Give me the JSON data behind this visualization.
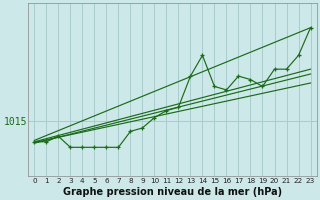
{
  "title": "Graphe pression niveau de la mer (hPa)",
  "bg_color": "#cce8e8",
  "grid_color": "#aacccc",
  "line_color": "#1a6b1a",
  "xlim": [
    -0.5,
    23.5
  ],
  "ylim": [
    1007,
    1032
  ],
  "ytick_val": 1015,
  "xticks": [
    0,
    1,
    2,
    3,
    4,
    5,
    6,
    7,
    8,
    9,
    10,
    11,
    12,
    13,
    14,
    15,
    16,
    17,
    18,
    19,
    20,
    21,
    22,
    23
  ],
  "series_main": [
    1012.0,
    1012.0,
    1012.8,
    1011.2,
    1011.2,
    1011.2,
    1011.2,
    1011.2,
    1013.5,
    1014.0,
    1015.5,
    1016.5,
    1017.0,
    1021.5,
    1024.5,
    1020.0,
    1019.5,
    1021.5,
    1021.0,
    1020.0,
    1022.5,
    1022.5,
    1024.5,
    1028.5
  ],
  "trend1": {
    "x": [
      0,
      23
    ],
    "y": [
      1011.8,
      1021.8
    ]
  },
  "trend2": {
    "x": [
      0,
      23
    ],
    "y": [
      1012.2,
      1028.5
    ]
  },
  "trend3": {
    "x": [
      0,
      23
    ],
    "y": [
      1012.0,
      1022.5
    ]
  },
  "trend4": {
    "x": [
      0,
      23
    ],
    "y": [
      1011.9,
      1020.5
    ]
  },
  "figsize": [
    3.2,
    2.0
  ],
  "dpi": 100
}
